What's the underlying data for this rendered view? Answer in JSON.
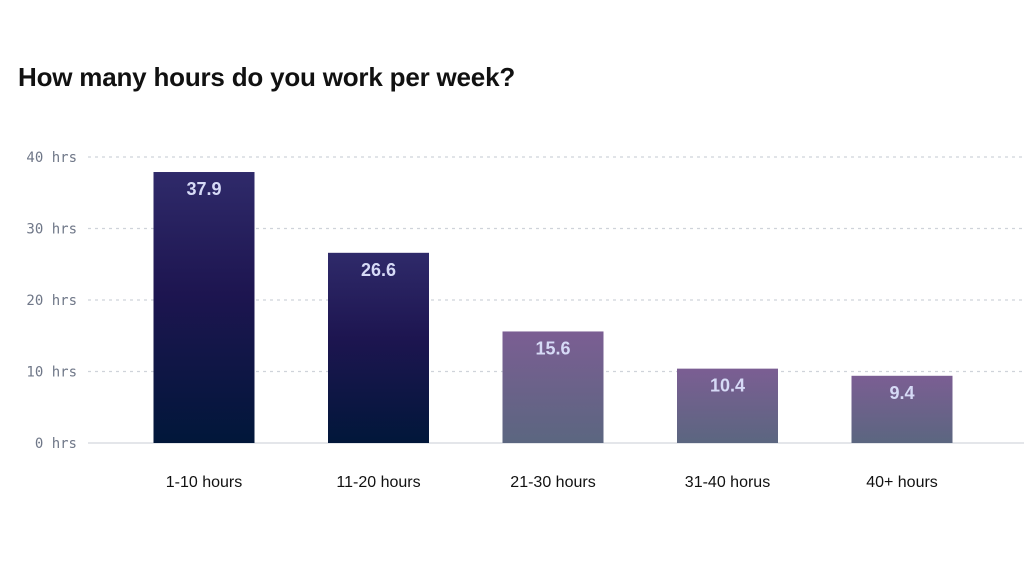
{
  "chart_data": {
    "type": "bar",
    "title": "How many hours do you work per week?",
    "categories": [
      "1-10 hours",
      "11-20 hours",
      "21-30 hours",
      "31-40 horus",
      "40+ hours"
    ],
    "values": [
      37.9,
      26.6,
      15.6,
      10.4,
      9.4
    ],
    "value_labels": [
      "37.9",
      "26.6",
      "15.6",
      "10.4",
      "9.4"
    ],
    "y_ticks": [
      0,
      10,
      20,
      30,
      40
    ],
    "y_tick_labels": [
      "0 hrs",
      "10 hrs",
      "20 hrs",
      "30 hrs",
      "40 hrs"
    ],
    "ylim": [
      0,
      40
    ],
    "grid": true,
    "xlabel": "",
    "ylabel": "",
    "bar_styles": [
      "dark",
      "dark",
      "light",
      "light",
      "light"
    ]
  },
  "colors": {
    "dark_top": "#2f2a6a",
    "dark_mid": "#1d1550",
    "dark_bottom": "#01173a",
    "light_top": "#7b5e93",
    "light_bottom": "#5b6680",
    "value_label": "#d6daf6",
    "grid": "#cfd3da",
    "axis": "#d4d7dd"
  }
}
